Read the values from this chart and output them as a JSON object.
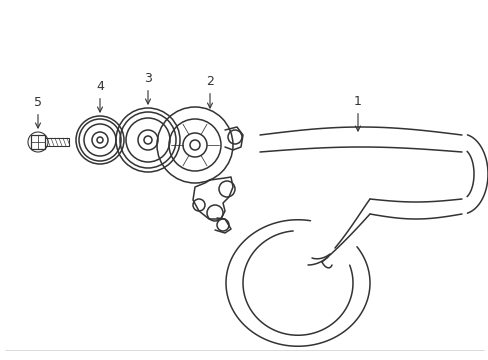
{
  "background_color": "#ffffff",
  "line_color": "#333333",
  "line_width": 1.1,
  "label_fontsize": 9,
  "fig_width": 4.89,
  "fig_height": 3.6,
  "dpi": 100
}
